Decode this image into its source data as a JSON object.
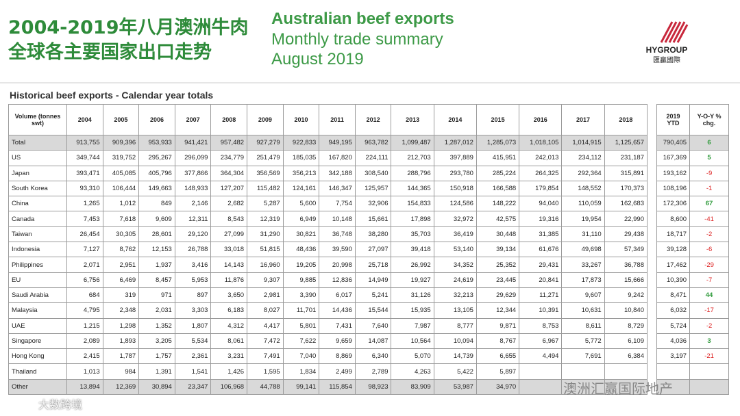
{
  "header": {
    "title_cn": [
      "2004-2019年八月澳洲牛肉",
      "全球各主要国家出口走势"
    ],
    "title_en": [
      "Australian beef exports",
      "Monthly trade summary",
      "August 2019"
    ]
  },
  "logo": {
    "name": "HYGROUP",
    "sub": "匯贏國際"
  },
  "table": {
    "caption": "Historical beef exports - Calendar year totals",
    "columns": [
      "Volume (tonnes swt)",
      "2004",
      "2005",
      "2006",
      "2007",
      "2008",
      "2009",
      "2010",
      "2011",
      "2012",
      "2013",
      "2014",
      "2015",
      "2016",
      "2017",
      "2018"
    ],
    "side_columns": [
      "2019 YTD",
      "Y-O-Y % chg."
    ],
    "rows": [
      {
        "label": "Total",
        "values": [
          "913,755",
          "909,396",
          "953,933",
          "941,421",
          "957,482",
          "927,279",
          "922,833",
          "949,195",
          "963,782",
          "1,099,487",
          "1,287,012",
          "1,285,073",
          "1,018,105",
          "1,014,915",
          "1,125,657"
        ],
        "ytd": "790,405",
        "yoy": "6"
      },
      {
        "label": "US",
        "values": [
          "349,744",
          "319,752",
          "295,267",
          "296,099",
          "234,779",
          "251,479",
          "185,035",
          "167,820",
          "224,111",
          "212,703",
          "397,889",
          "415,951",
          "242,013",
          "234,112",
          "231,187"
        ],
        "ytd": "167,369",
        "yoy": "5"
      },
      {
        "label": "Japan",
        "values": [
          "393,471",
          "405,085",
          "405,796",
          "377,866",
          "364,304",
          "356,569",
          "356,213",
          "342,188",
          "308,540",
          "288,796",
          "293,780",
          "285,224",
          "264,325",
          "292,364",
          "315,891"
        ],
        "ytd": "193,162",
        "yoy": "-9"
      },
      {
        "label": "South Korea",
        "values": [
          "93,310",
          "106,444",
          "149,663",
          "148,933",
          "127,207",
          "115,482",
          "124,161",
          "146,347",
          "125,957",
          "144,365",
          "150,918",
          "166,588",
          "179,854",
          "148,552",
          "170,373"
        ],
        "ytd": "108,196",
        "yoy": "-1"
      },
      {
        "label": "China",
        "values": [
          "1,265",
          "1,012",
          "849",
          "2,146",
          "2,682",
          "5,287",
          "5,600",
          "7,754",
          "32,906",
          "154,833",
          "124,586",
          "148,222",
          "94,040",
          "110,059",
          "162,683"
        ],
        "ytd": "172,306",
        "yoy": "67"
      },
      {
        "label": "Canada",
        "values": [
          "7,453",
          "7,618",
          "9,609",
          "12,311",
          "8,543",
          "12,319",
          "6,949",
          "10,148",
          "15,661",
          "17,898",
          "32,972",
          "42,575",
          "19,316",
          "19,954",
          "22,990"
        ],
        "ytd": "8,600",
        "yoy": "-41"
      },
      {
        "label": "Taiwan",
        "values": [
          "26,454",
          "30,305",
          "28,601",
          "29,120",
          "27,099",
          "31,290",
          "30,821",
          "36,748",
          "38,280",
          "35,703",
          "36,419",
          "30,448",
          "31,385",
          "31,110",
          "29,438"
        ],
        "ytd": "18,717",
        "yoy": "-2"
      },
      {
        "label": "Indonesia",
        "values": [
          "7,127",
          "8,762",
          "12,153",
          "26,788",
          "33,018",
          "51,815",
          "48,436",
          "39,590",
          "27,097",
          "39,418",
          "53,140",
          "39,134",
          "61,676",
          "49,698",
          "57,349"
        ],
        "ytd": "39,128",
        "yoy": "-6"
      },
      {
        "label": "Philippines",
        "values": [
          "2,071",
          "2,951",
          "1,937",
          "3,416",
          "14,143",
          "16,960",
          "19,205",
          "20,998",
          "25,718",
          "26,992",
          "34,352",
          "25,352",
          "29,431",
          "33,267",
          "36,788"
        ],
        "ytd": "17,462",
        "yoy": "-29"
      },
      {
        "label": "EU",
        "values": [
          "6,756",
          "6,469",
          "8,457",
          "5,953",
          "11,876",
          "9,307",
          "9,885",
          "12,836",
          "14,949",
          "19,927",
          "24,619",
          "23,445",
          "20,841",
          "17,873",
          "15,666"
        ],
        "ytd": "10,390",
        "yoy": "-7"
      },
      {
        "label": "Saudi Arabia",
        "values": [
          "684",
          "319",
          "971",
          "897",
          "3,650",
          "2,981",
          "3,390",
          "6,017",
          "5,241",
          "31,126",
          "32,213",
          "29,629",
          "11,271",
          "9,607",
          "9,242"
        ],
        "ytd": "8,471",
        "yoy": "44"
      },
      {
        "label": "Malaysia",
        "values": [
          "4,795",
          "2,348",
          "2,031",
          "3,303",
          "6,183",
          "8,027",
          "11,701",
          "14,436",
          "15,544",
          "15,935",
          "13,105",
          "12,344",
          "10,391",
          "10,631",
          "10,840"
        ],
        "ytd": "6,032",
        "yoy": "-17"
      },
      {
        "label": "UAE",
        "values": [
          "1,215",
          "1,298",
          "1,352",
          "1,807",
          "4,312",
          "4,417",
          "5,801",
          "7,431",
          "7,640",
          "7,987",
          "8,777",
          "9,871",
          "8,753",
          "8,611",
          "8,729"
        ],
        "ytd": "5,724",
        "yoy": "-2"
      },
      {
        "label": "Singapore",
        "values": [
          "2,089",
          "1,893",
          "3,205",
          "5,534",
          "8,061",
          "7,472",
          "7,622",
          "9,659",
          "14,087",
          "10,564",
          "10,094",
          "8,767",
          "6,967",
          "5,772",
          "6,109"
        ],
        "ytd": "4,036",
        "yoy": "3"
      },
      {
        "label": "Hong Kong",
        "values": [
          "2,415",
          "1,787",
          "1,757",
          "2,361",
          "3,231",
          "7,491",
          "7,040",
          "8,869",
          "6,340",
          "5,070",
          "14,739",
          "6,655",
          "4,494",
          "7,691",
          "6,384"
        ],
        "ytd": "3,197",
        "yoy": "-21"
      },
      {
        "label": "Thailand",
        "values": [
          "1,013",
          "984",
          "1,391",
          "1,541",
          "1,426",
          "1,595",
          "1,834",
          "2,499",
          "2,789",
          "4,263",
          "5,422",
          "5,897",
          null,
          null,
          null
        ],
        "ytd": null,
        "yoy": null
      },
      {
        "label": "Other",
        "values": [
          "13,894",
          "12,369",
          "30,894",
          "23,347",
          "106,968",
          "44,788",
          "99,141",
          "115,854",
          "98,923",
          "83,909",
          "53,987",
          "34,970",
          null,
          null,
          null
        ],
        "ytd": null,
        "yoy": null
      }
    ]
  },
  "watermarks": [
    "澳洲汇赢国际地产",
    "大数跨境"
  ]
}
